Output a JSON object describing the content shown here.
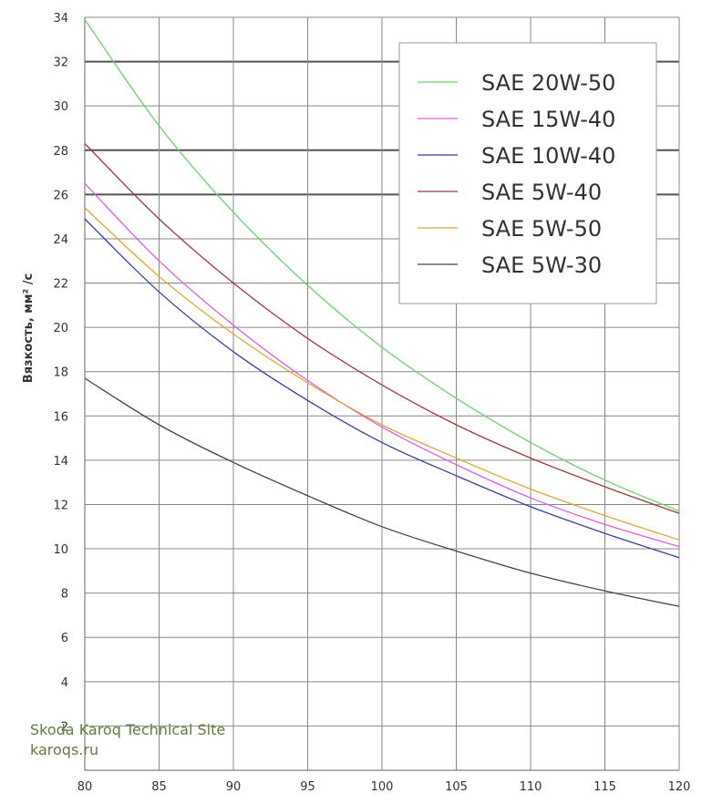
{
  "chart_data": {
    "type": "line",
    "title": "",
    "xlabel": "",
    "ylabel": "Вязкость,  мм² /с",
    "xlim": [
      80,
      120
    ],
    "ylim": [
      0,
      34
    ],
    "x_ticks": [
      "80",
      "85",
      "90",
      "95",
      "100",
      "105",
      "110",
      "115",
      "120"
    ],
    "y_ticks": [
      "2",
      "4",
      "6",
      "8",
      "10",
      "12",
      "14",
      "16",
      "18",
      "20",
      "22",
      "24",
      "26",
      "28",
      "30",
      "32",
      "34"
    ],
    "grid": true,
    "legend_position": "top-right",
    "series": [
      {
        "name": "SAE 20W-50",
        "color": "#6cd36c",
        "x": [
          80,
          85,
          90,
          95,
          100,
          105,
          110,
          115,
          120
        ],
        "y": [
          33.9,
          29.1,
          25.2,
          21.9,
          19.1,
          16.8,
          14.8,
          13.1,
          11.7
        ]
      },
      {
        "name": "SAE 15W-40",
        "color": "#e05ee0",
        "x": [
          80,
          85,
          90,
          95,
          100,
          105,
          110,
          115,
          120
        ],
        "y": [
          26.5,
          23.0,
          20.1,
          17.6,
          15.5,
          13.8,
          12.3,
          11.1,
          10.1
        ]
      },
      {
        "name": "SAE 10W-40",
        "color": "#3a3fa0",
        "x": [
          80,
          85,
          90,
          95,
          100,
          105,
          110,
          115,
          120
        ],
        "y": [
          24.9,
          21.6,
          18.9,
          16.7,
          14.8,
          13.3,
          11.9,
          10.7,
          9.6
        ]
      },
      {
        "name": "SAE 5W-40",
        "color": "#a03a3a",
        "x": [
          80,
          85,
          90,
          95,
          100,
          105,
          110,
          115,
          120
        ],
        "y": [
          28.3,
          24.9,
          22.0,
          19.5,
          17.4,
          15.6,
          14.1,
          12.8,
          11.6
        ]
      },
      {
        "name": "SAE 5W-50",
        "color": "#e0a93a",
        "x": [
          80,
          85,
          90,
          95,
          100,
          105,
          110,
          115,
          120
        ],
        "y": [
          25.4,
          22.3,
          19.7,
          17.5,
          15.6,
          14.1,
          12.7,
          11.5,
          10.4
        ]
      },
      {
        "name": "SAE 5W-30",
        "color": "#444444",
        "x": [
          80,
          85,
          90,
          95,
          100,
          105,
          110,
          115,
          120
        ],
        "y": [
          17.7,
          15.6,
          13.9,
          12.4,
          11.0,
          9.9,
          8.9,
          8.1,
          7.4
        ]
      }
    ]
  },
  "watermark": {
    "line1": "Skoda Karoq Technical Site",
    "line2": "karoqs.ru"
  }
}
